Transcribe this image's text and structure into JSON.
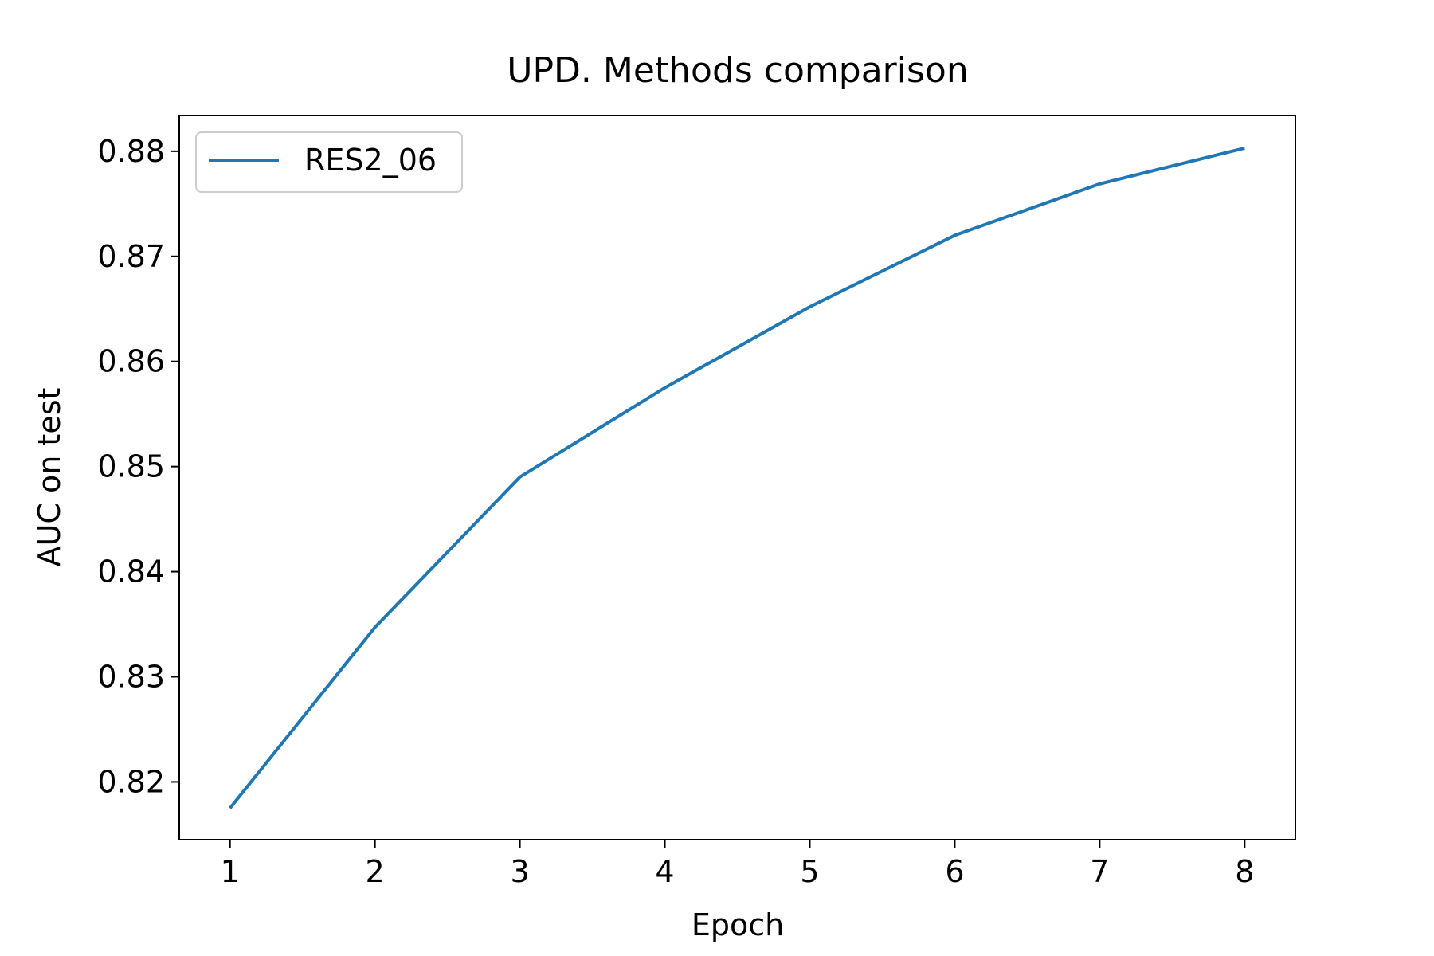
{
  "chart_data": {
    "type": "line",
    "title": "UPD. Methods comparison",
    "xlabel": "Epoch",
    "ylabel": "AUC on test",
    "x": [
      1,
      2,
      3,
      4,
      5,
      6,
      7,
      8
    ],
    "series": [
      {
        "name": "RES2_06",
        "values": [
          0.8175,
          0.8347,
          0.849,
          0.8575,
          0.8652,
          0.872,
          0.8769,
          0.8803
        ],
        "color": "#1f77b4"
      }
    ],
    "xticks": [
      1,
      2,
      3,
      4,
      5,
      6,
      7,
      8
    ],
    "xtick_labels": [
      "1",
      "2",
      "3",
      "4",
      "5",
      "6",
      "7",
      "8"
    ],
    "yticks": [
      0.82,
      0.83,
      0.84,
      0.85,
      0.86,
      0.87,
      0.88
    ],
    "ytick_labels": [
      "0.82",
      "0.83",
      "0.84",
      "0.85",
      "0.86",
      "0.87",
      "0.88"
    ],
    "xlim": [
      0.65,
      8.35
    ],
    "ylim": [
      0.8145,
      0.8834
    ],
    "grid": false,
    "legend_position": "top-left"
  }
}
